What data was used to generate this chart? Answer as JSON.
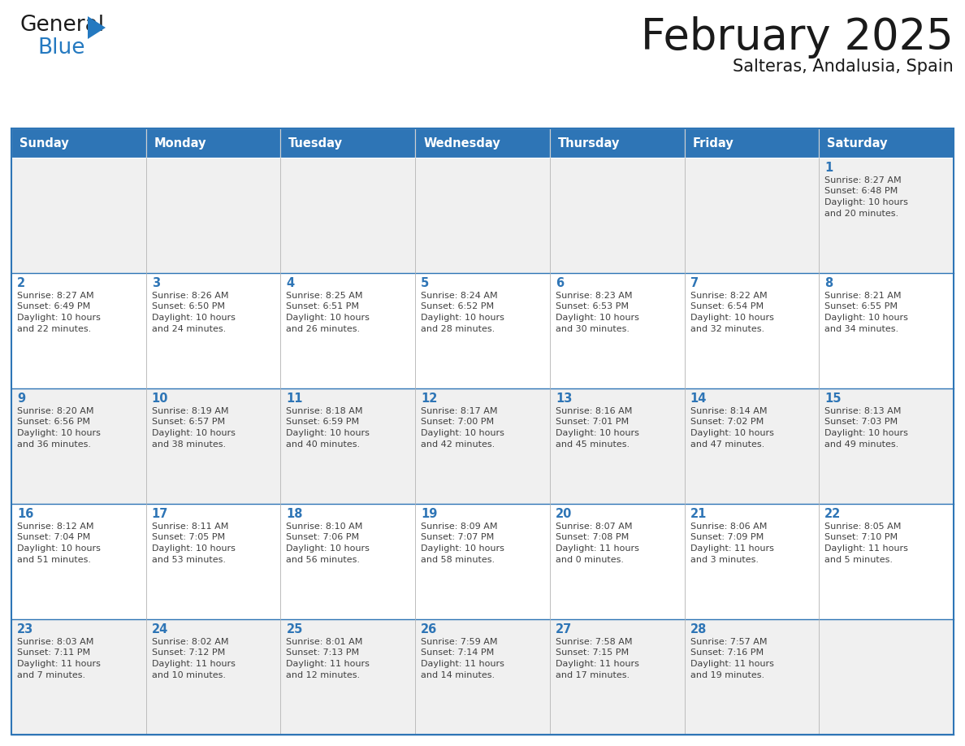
{
  "title": "February 2025",
  "subtitle": "Salteras, Andalusia, Spain",
  "header_bg_color": "#2E75B6",
  "header_text_color": "#FFFFFF",
  "cell_bg_white": "#FFFFFF",
  "cell_bg_gray": "#F0F0F0",
  "border_color": "#2E75B6",
  "day_number_color": "#2E75B6",
  "detail_text_color": "#404040",
  "grid_line_color": "#BBBBBB",
  "days_of_week": [
    "Sunday",
    "Monday",
    "Tuesday",
    "Wednesday",
    "Thursday",
    "Friday",
    "Saturday"
  ],
  "weeks": [
    [
      {
        "day": null,
        "sunrise": null,
        "sunset": null,
        "daylight": null
      },
      {
        "day": null,
        "sunrise": null,
        "sunset": null,
        "daylight": null
      },
      {
        "day": null,
        "sunrise": null,
        "sunset": null,
        "daylight": null
      },
      {
        "day": null,
        "sunrise": null,
        "sunset": null,
        "daylight": null
      },
      {
        "day": null,
        "sunrise": null,
        "sunset": null,
        "daylight": null
      },
      {
        "day": null,
        "sunrise": null,
        "sunset": null,
        "daylight": null
      },
      {
        "day": 1,
        "sunrise": "8:27 AM",
        "sunset": "6:48 PM",
        "daylight": "10 hours and 20 minutes."
      }
    ],
    [
      {
        "day": 2,
        "sunrise": "8:27 AM",
        "sunset": "6:49 PM",
        "daylight": "10 hours and 22 minutes."
      },
      {
        "day": 3,
        "sunrise": "8:26 AM",
        "sunset": "6:50 PM",
        "daylight": "10 hours and 24 minutes."
      },
      {
        "day": 4,
        "sunrise": "8:25 AM",
        "sunset": "6:51 PM",
        "daylight": "10 hours and 26 minutes."
      },
      {
        "day": 5,
        "sunrise": "8:24 AM",
        "sunset": "6:52 PM",
        "daylight": "10 hours and 28 minutes."
      },
      {
        "day": 6,
        "sunrise": "8:23 AM",
        "sunset": "6:53 PM",
        "daylight": "10 hours and 30 minutes."
      },
      {
        "day": 7,
        "sunrise": "8:22 AM",
        "sunset": "6:54 PM",
        "daylight": "10 hours and 32 minutes."
      },
      {
        "day": 8,
        "sunrise": "8:21 AM",
        "sunset": "6:55 PM",
        "daylight": "10 hours and 34 minutes."
      }
    ],
    [
      {
        "day": 9,
        "sunrise": "8:20 AM",
        "sunset": "6:56 PM",
        "daylight": "10 hours and 36 minutes."
      },
      {
        "day": 10,
        "sunrise": "8:19 AM",
        "sunset": "6:57 PM",
        "daylight": "10 hours and 38 minutes."
      },
      {
        "day": 11,
        "sunrise": "8:18 AM",
        "sunset": "6:59 PM",
        "daylight": "10 hours and 40 minutes."
      },
      {
        "day": 12,
        "sunrise": "8:17 AM",
        "sunset": "7:00 PM",
        "daylight": "10 hours and 42 minutes."
      },
      {
        "day": 13,
        "sunrise": "8:16 AM",
        "sunset": "7:01 PM",
        "daylight": "10 hours and 45 minutes."
      },
      {
        "day": 14,
        "sunrise": "8:14 AM",
        "sunset": "7:02 PM",
        "daylight": "10 hours and 47 minutes."
      },
      {
        "day": 15,
        "sunrise": "8:13 AM",
        "sunset": "7:03 PM",
        "daylight": "10 hours and 49 minutes."
      }
    ],
    [
      {
        "day": 16,
        "sunrise": "8:12 AM",
        "sunset": "7:04 PM",
        "daylight": "10 hours and 51 minutes."
      },
      {
        "day": 17,
        "sunrise": "8:11 AM",
        "sunset": "7:05 PM",
        "daylight": "10 hours and 53 minutes."
      },
      {
        "day": 18,
        "sunrise": "8:10 AM",
        "sunset": "7:06 PM",
        "daylight": "10 hours and 56 minutes."
      },
      {
        "day": 19,
        "sunrise": "8:09 AM",
        "sunset": "7:07 PM",
        "daylight": "10 hours and 58 minutes."
      },
      {
        "day": 20,
        "sunrise": "8:07 AM",
        "sunset": "7:08 PM",
        "daylight": "11 hours and 0 minutes."
      },
      {
        "day": 21,
        "sunrise": "8:06 AM",
        "sunset": "7:09 PM",
        "daylight": "11 hours and 3 minutes."
      },
      {
        "day": 22,
        "sunrise": "8:05 AM",
        "sunset": "7:10 PM",
        "daylight": "11 hours and 5 minutes."
      }
    ],
    [
      {
        "day": 23,
        "sunrise": "8:03 AM",
        "sunset": "7:11 PM",
        "daylight": "11 hours and 7 minutes."
      },
      {
        "day": 24,
        "sunrise": "8:02 AM",
        "sunset": "7:12 PM",
        "daylight": "11 hours and 10 minutes."
      },
      {
        "day": 25,
        "sunrise": "8:01 AM",
        "sunset": "7:13 PM",
        "daylight": "11 hours and 12 minutes."
      },
      {
        "day": 26,
        "sunrise": "7:59 AM",
        "sunset": "7:14 PM",
        "daylight": "11 hours and 14 minutes."
      },
      {
        "day": 27,
        "sunrise": "7:58 AM",
        "sunset": "7:15 PM",
        "daylight": "11 hours and 17 minutes."
      },
      {
        "day": 28,
        "sunrise": "7:57 AM",
        "sunset": "7:16 PM",
        "daylight": "11 hours and 19 minutes."
      },
      {
        "day": null,
        "sunrise": null,
        "sunset": null,
        "daylight": null
      }
    ]
  ],
  "logo_general_color": "#1a1a1a",
  "logo_blue_color": "#2479C0",
  "logo_triangle_color": "#2479C0",
  "title_color": "#1a1a1a",
  "subtitle_color": "#1a1a1a"
}
